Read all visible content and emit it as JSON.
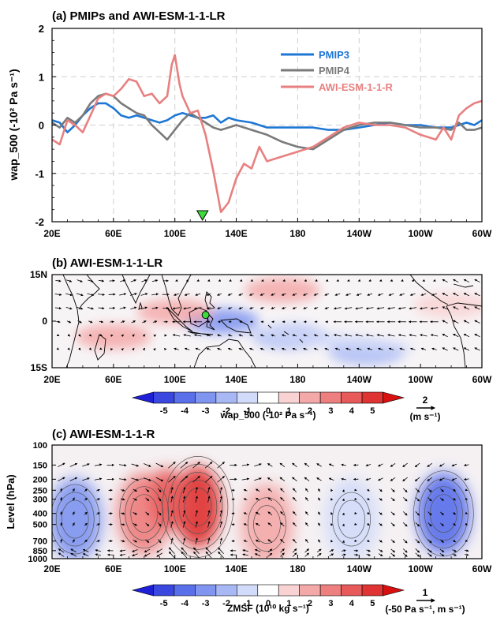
{
  "colors": {
    "pmip3": "#1f77d4",
    "pmip4": "#7a7a7a",
    "awi": "#e88080",
    "triangle": "#3ddc3d",
    "dot": "#3ddc3d"
  },
  "colorbar": {
    "ticks": [
      "-5",
      "-4",
      "-3",
      "-2",
      "-1",
      "0",
      "1",
      "2",
      "3",
      "4",
      "5"
    ],
    "colors": [
      "#1f1fd6",
      "#3a48e0",
      "#5a70ea",
      "#7f95f0",
      "#a8b8f5",
      "#d2dbf9",
      "#ffffff",
      "#f9d3d3",
      "#f4a9a9",
      "#ee7f7f",
      "#e85a5a",
      "#e03434",
      "#d81010"
    ]
  },
  "panel_a": {
    "title": "(a) PMIPs and AWI-ESM-1-1-LR",
    "ylabel": "wap_500 (-10² Pa s⁻¹)",
    "xticks": [
      "20E",
      "60E",
      "100E",
      "140E",
      "180",
      "140W",
      "100W",
      "60W"
    ],
    "yticks": [
      "2",
      "1",
      "0",
      "-1",
      "-2"
    ]
  },
  "panel_b": {
    "title": "(b) AWI-ESM-1-1-LR",
    "xticks": [
      "20E",
      "60E",
      "100E",
      "140E",
      "180",
      "140W",
      "100W",
      "60W"
    ],
    "yticks": [
      "15N",
      "0",
      "15S"
    ],
    "cbar_label": "wap_500 (-10² Pa s⁻¹)",
    "vec_value": "2",
    "vec_unit": "(m s⁻¹)"
  },
  "panel_c": {
    "title": "(c) AWI-ESM-1-1-R",
    "ylabel": "Level (hPa)",
    "xticks": [
      "20E",
      "60E",
      "100E",
      "140E",
      "180",
      "140W",
      "100W",
      "60W"
    ],
    "yticks": [
      "100",
      "150",
      "200",
      "250",
      "300",
      "400",
      "500",
      "700",
      "850",
      "1000"
    ],
    "cbar_label": "ZMSF (10¹⁰ kg s⁻¹)",
    "vec_value": "1",
    "vec_unit": "(-50 Pa s⁻¹, m s⁻¹)"
  },
  "chart_data": [
    {
      "type": "line",
      "title": "(a) PMIPs and AWI-ESM-1-1-LR",
      "ylabel": "wap_500 (-10² Pa s⁻¹)",
      "xlim": [
        20,
        300
      ],
      "ylim": [
        -2,
        2
      ],
      "x_unit": "degrees east (20E to 60W)",
      "legend": "top-right",
      "grid": true,
      "series": [
        {
          "name": "PMIP3",
          "x": [
            20,
            25,
            30,
            35,
            40,
            45,
            50,
            55,
            60,
            65,
            70,
            75,
            80,
            85,
            90,
            95,
            100,
            105,
            110,
            115,
            120,
            125,
            130,
            135,
            140,
            150,
            160,
            170,
            180,
            190,
            200,
            210,
            220,
            230,
            240,
            250,
            260,
            270,
            280,
            285,
            290,
            295,
            300
          ],
          "y": [
            0.1,
            0.05,
            -0.15,
            0.0,
            0.2,
            0.35,
            0.45,
            0.45,
            0.35,
            0.2,
            0.15,
            0.2,
            0.15,
            0.1,
            0.05,
            0.1,
            0.2,
            0.25,
            0.2,
            0.15,
            0.15,
            0.2,
            0.05,
            0.15,
            0.1,
            0.05,
            -0.05,
            -0.05,
            -0.05,
            -0.05,
            -0.1,
            -0.1,
            -0.05,
            0.0,
            0.05,
            0.0,
            0.0,
            -0.05,
            -0.05,
            0.0,
            0.05,
            0.0,
            0.1
          ]
        },
        {
          "name": "PMIP4",
          "x": [
            20,
            25,
            30,
            35,
            40,
            45,
            50,
            55,
            60,
            65,
            70,
            75,
            80,
            85,
            90,
            95,
            100,
            105,
            110,
            115,
            120,
            125,
            130,
            135,
            140,
            150,
            160,
            170,
            180,
            190,
            200,
            210,
            220,
            230,
            240,
            250,
            260,
            270,
            280,
            285,
            290,
            295,
            300
          ],
          "y": [
            0.05,
            -0.05,
            0.15,
            0.05,
            0.2,
            0.45,
            0.6,
            0.65,
            0.6,
            0.45,
            0.35,
            0.25,
            0.2,
            0.0,
            -0.15,
            -0.3,
            -0.1,
            0.1,
            0.25,
            0.15,
            0.05,
            -0.05,
            -0.1,
            -0.05,
            0.0,
            -0.1,
            -0.2,
            -0.35,
            -0.45,
            -0.5,
            -0.3,
            -0.1,
            0.0,
            0.05,
            0.05,
            0.0,
            -0.05,
            -0.05,
            -0.1,
            0.05,
            -0.1,
            -0.1,
            -0.05
          ]
        },
        {
          "name": "AWI-ESM-1-1-R",
          "x": [
            20,
            25,
            30,
            35,
            40,
            45,
            50,
            55,
            60,
            65,
            70,
            75,
            80,
            85,
            90,
            95,
            98,
            100,
            103,
            105,
            110,
            115,
            120,
            125,
            130,
            135,
            140,
            145,
            150,
            155,
            160,
            170,
            180,
            190,
            200,
            210,
            220,
            230,
            240,
            250,
            260,
            270,
            275,
            280,
            285,
            290,
            295,
            300
          ],
          "y": [
            -0.3,
            -0.4,
            0.1,
            0.0,
            -0.15,
            0.2,
            0.55,
            0.65,
            0.6,
            0.75,
            0.95,
            0.9,
            0.6,
            0.65,
            0.45,
            0.6,
            1.25,
            1.45,
            0.85,
            0.6,
            0.25,
            0.3,
            -0.2,
            -0.95,
            -1.8,
            -1.6,
            -1.1,
            -0.8,
            -0.9,
            -0.45,
            -0.75,
            -0.65,
            -0.55,
            -0.45,
            -0.25,
            -0.05,
            0.05,
            0.0,
            0.0,
            -0.05,
            -0.2,
            -0.3,
            -0.05,
            -0.3,
            0.2,
            0.35,
            0.45,
            0.5
          ]
        }
      ],
      "annotations": [
        {
          "marker": "triangle",
          "x": 118,
          "y": -2
        }
      ]
    },
    {
      "type": "heatmap",
      "title": "(b) AWI-ESM-1-1-LR",
      "xlim": [
        20,
        300
      ],
      "ylim": [
        -15,
        15
      ],
      "variable": "wap_500 (-10² Pa s⁻¹)",
      "vectors": "wind (m s⁻¹), reference 2",
      "colorbar_range": [
        -5,
        5
      ],
      "features": [
        {
          "lon": 130,
          "lat": 0,
          "value": -3,
          "desc": "negative anomaly east of maritime continent"
        },
        {
          "lon": 175,
          "lat": -5,
          "value": -2
        },
        {
          "lon": 225,
          "lat": -10,
          "value": -2.5
        },
        {
          "lon": 100,
          "lat": 3,
          "value": 2
        },
        {
          "lon": 60,
          "lat": -5,
          "value": 1.5
        },
        {
          "lon": 170,
          "lat": 10,
          "value": 1.5
        },
        {
          "lon": 280,
          "lat": 5,
          "value": 1
        }
      ],
      "marker": {
        "type": "dot",
        "lon": 120,
        "lat": 2
      }
    },
    {
      "type": "heatmap",
      "title": "(c) AWI-ESM-1-1-R",
      "ylabel": "Level (hPa)",
      "xlim": [
        20,
        300
      ],
      "ylim": [
        1000,
        100
      ],
      "variable": "ZMSF (10¹⁰ kg s⁻¹)",
      "vectors": "(-50 Pa s⁻¹, m s⁻¹), reference 1",
      "colorbar_range": [
        -5,
        5
      ],
      "features": [
        {
          "lon": 35,
          "level": 450,
          "value": -3
        },
        {
          "lon": 80,
          "level": 400,
          "value": 3
        },
        {
          "lon": 115,
          "level": 350,
          "value": 5
        },
        {
          "lon": 160,
          "level": 500,
          "value": 2
        },
        {
          "lon": 215,
          "level": 450,
          "value": -1.5
        },
        {
          "lon": 275,
          "level": 400,
          "value": -4
        }
      ]
    }
  ]
}
